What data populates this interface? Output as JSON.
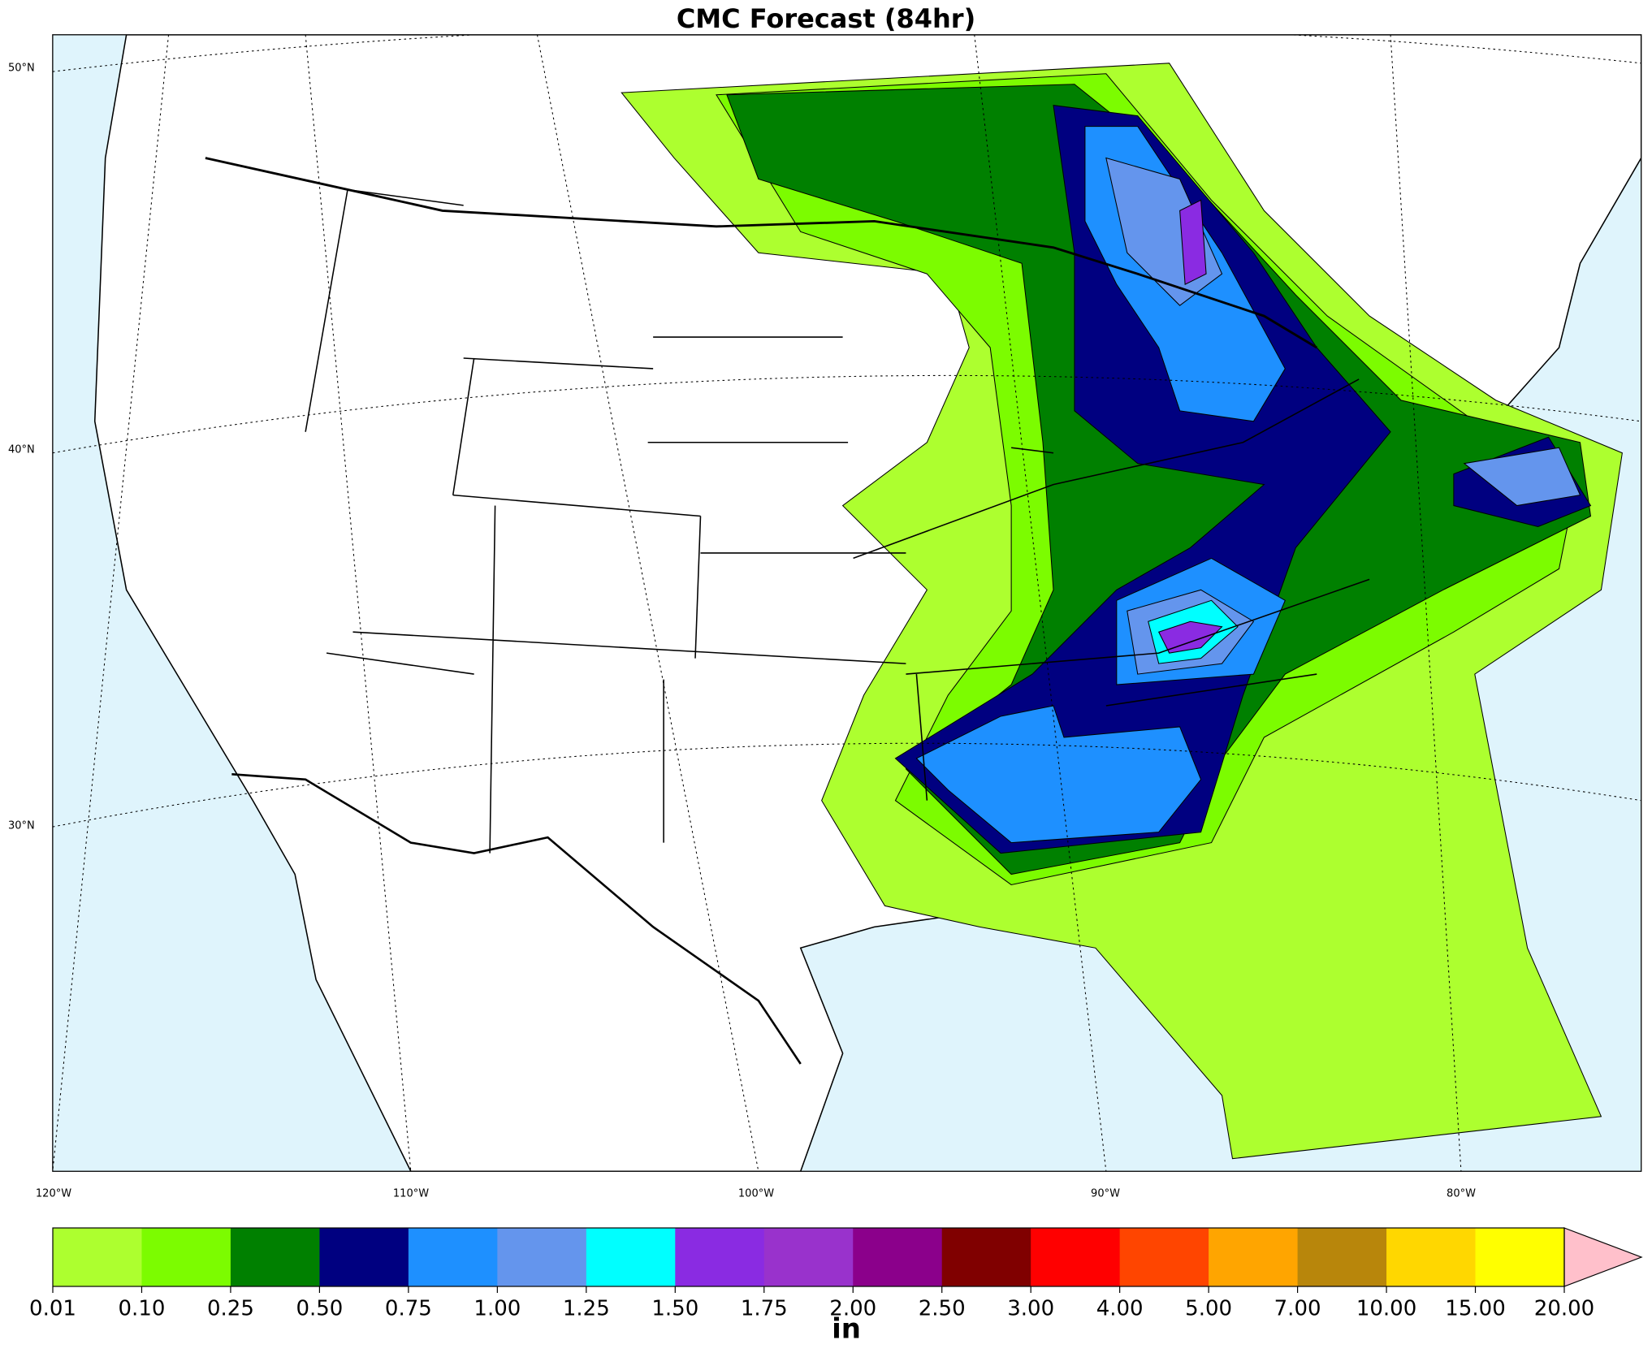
{
  "title": "CMC Forecast (84hr)",
  "lat_labels": [
    "50°N",
    "40°N",
    "30°N"
  ],
  "lon_labels": [
    "120°W",
    "110°W",
    "100°W",
    "90°W",
    "80°W"
  ],
  "colorbar": {
    "unit": "in",
    "ticks": [
      {
        "value": 0.01,
        "label": "0.01"
      },
      {
        "value": 0.1,
        "label": "0.10"
      },
      {
        "value": 0.25,
        "label": "0.25"
      },
      {
        "value": 0.5,
        "label": "0.50"
      },
      {
        "value": 0.75,
        "label": "0.75"
      },
      {
        "value": 1,
        "label": "1.00"
      },
      {
        "value": 1.25,
        "label": "1.25"
      },
      {
        "value": 1.5,
        "label": "1.50"
      },
      {
        "value": 1.75,
        "label": "1.75"
      },
      {
        "value": 2,
        "label": "2.00"
      },
      {
        "value": 2.5,
        "label": "2.50"
      },
      {
        "value": 3,
        "label": "3.00"
      },
      {
        "value": 4,
        "label": "4.00"
      },
      {
        "value": 5,
        "label": "5.00"
      },
      {
        "value": 7,
        "label": "7.00"
      },
      {
        "value": 10,
        "label": "10.00"
      },
      {
        "value": 15,
        "label": "15.00"
      },
      {
        "value": 20,
        "label": "20.00"
      }
    ],
    "colors": [
      "#adff2f",
      "#7cfc00",
      "#008000",
      "#000080",
      "#1e90ff",
      "#6495ed",
      "#00ffff",
      "#8a2be2",
      "#9932cc",
      "#8b008b",
      "#800000",
      "#ff0000",
      "#ff4500",
      "#ffa500",
      "#b8860b",
      "#ffd700",
      "#ffff00"
    ],
    "extend_color": "#ffc0cb"
  }
}
